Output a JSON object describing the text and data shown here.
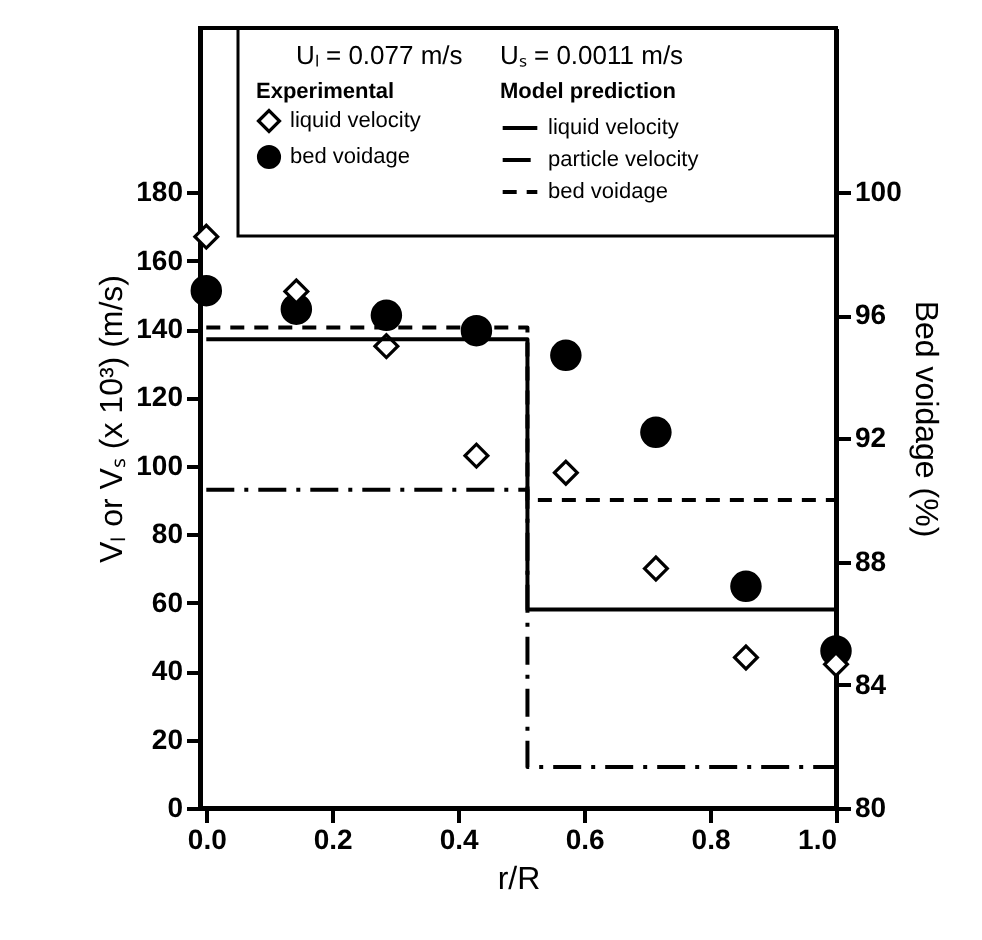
{
  "chart_data": {
    "type": "scatter",
    "xlabel": "r/R",
    "ylabel": "Vₗ or Vₛ (x 10³) (m/s)",
    "y2label": "Bed voidage (%)",
    "annotations": [
      "Uₗ = 0.077 m/s",
      "Uₛ = 0.0011 m/s",
      "Experimental",
      "Model prediction"
    ],
    "x": [
      0.0,
      0.143,
      0.286,
      0.429,
      0.571,
      0.714,
      0.857,
      1.0
    ],
    "series": [
      {
        "name": "liquid velocity",
        "marker": "diamond",
        "color": "#000000",
        "values": [
          167,
          151,
          135,
          103,
          98,
          70,
          44,
          42
        ]
      },
      {
        "name": "bed voidage",
        "marker": "circle",
        "color": "#000000",
        "axis": "y2",
        "values": [
          96.8,
          96.2,
          96.0,
          95.5,
          94.7,
          92.2,
          87.2,
          85.1
        ]
      },
      {
        "name": "liquid velocity",
        "type": "step",
        "line_style": "solid",
        "color": "#000000",
        "x": [
          0.0,
          0.51,
          1.0
        ],
        "values": [
          137,
          58,
          58
        ]
      },
      {
        "name": "particle velocity",
        "type": "step",
        "line_style": "dashdot",
        "color": "#000000",
        "x": [
          0.0,
          0.51,
          1.0
        ],
        "values": [
          93,
          12,
          12
        ]
      },
      {
        "name": "bed voidage",
        "type": "step",
        "line_style": "dashed",
        "color": "#000000",
        "axis": "y2",
        "x": [
          0.0,
          0.51,
          1.0
        ],
        "values": [
          95.6,
          90.0,
          90.0
        ]
      }
    ],
    "xlim": [
      -0.01,
      1.0
    ],
    "xticks": [
      {
        "value": 0,
        "label": "0.0"
      },
      {
        "value": 0.2,
        "label": "0.2"
      },
      {
        "value": 0.4,
        "label": "0.4"
      },
      {
        "value": 0.6,
        "label": "0.6"
      },
      {
        "value": 0.8,
        "label": "0.8"
      },
      {
        "value": 1.0,
        "label": "1.0"
      }
    ],
    "ylim": [
      0,
      228
    ],
    "yticks": [
      0,
      20,
      40,
      60,
      80,
      100,
      120,
      140,
      160,
      180
    ],
    "y2lim": [
      80,
      105.33
    ],
    "y2ticks": [
      80,
      84,
      88,
      92,
      96,
      100
    ],
    "grid": false,
    "legend": "top"
  }
}
